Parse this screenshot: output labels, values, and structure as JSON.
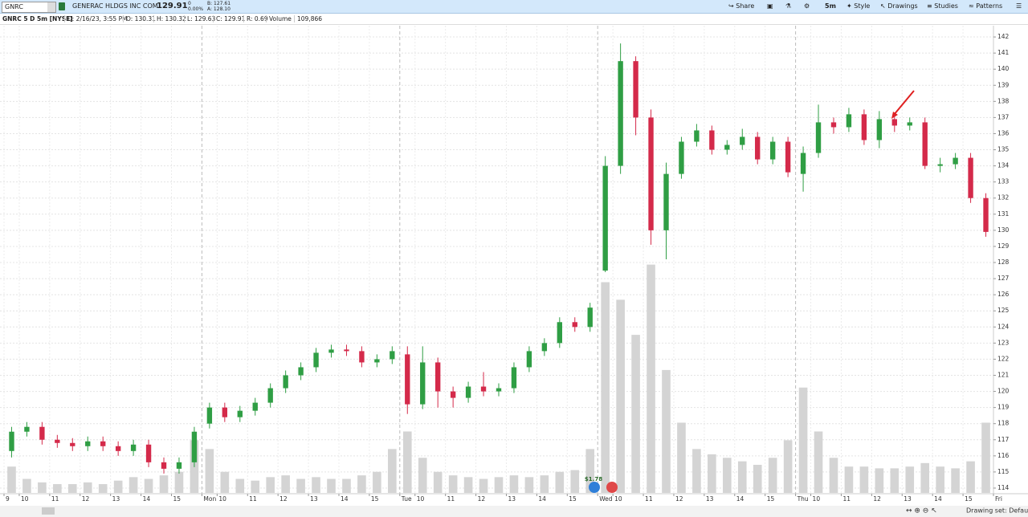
{
  "toolbar": {
    "symbol": "GNRC",
    "company": "GENERAC HLDGS INC COM",
    "last": "129.91",
    "change": "0",
    "change_pct": "0.00%",
    "bid": "B: 127.61",
    "ask": "A: 128.10",
    "share": "Share",
    "interval": "5m",
    "style": "Style",
    "drawings": "Drawings",
    "studies": "Studies",
    "patterns": "Patterns"
  },
  "info": {
    "symbol_desc": "GNRC 5 D 5m [NYSE]",
    "date": "D: 2/16/23, 3:55 PM",
    "open": "O: 130.31",
    "high": "H: 130.32",
    "low": "L: 129.63",
    "close": "C: 129.91",
    "range": "R: 0.69",
    "volume_label": "Volume",
    "volume": "109,866"
  },
  "status": {
    "drawing_set": "Drawing set: Default"
  },
  "chart_data": {
    "type": "candlestick",
    "up_color": "#2f9e44",
    "down_color": "#d42a4a",
    "volume_color": "#d4d4d4",
    "earnings_label": "$1.78",
    "x": [
      0.25,
      0.75,
      1.25,
      1.75,
      2.25,
      2.75,
      3.25,
      3.75,
      4.25,
      4.75,
      5.25,
      5.75,
      6.25,
      6.75,
      7.25,
      7.75,
      8.25,
      8.75,
      9.25,
      9.75,
      10.25,
      10.75,
      11.25,
      11.75,
      12.25,
      12.75,
      13.25,
      13.75,
      14.25,
      14.75,
      15.25,
      15.75,
      16.25,
      16.75,
      17.25,
      17.75,
      18.25,
      18.75,
      19.25,
      19.75,
      20.25,
      20.75,
      21.25,
      21.75,
      22.25,
      22.75,
      23.25,
      23.75,
      24.25,
      24.75,
      25.25,
      25.75,
      26.25,
      26.75,
      27.25,
      27.75,
      28.25,
      28.75,
      29.25,
      29.75,
      30.25,
      30.75,
      31.25,
      31.75,
      32.25
    ],
    "open": [
      116.3,
      117.5,
      117.8,
      117.0,
      116.8,
      116.6,
      116.9,
      116.6,
      116.3,
      116.7,
      115.6,
      115.2,
      115.6,
      118.0,
      119.0,
      118.4,
      118.8,
      119.3,
      120.2,
      121.0,
      121.5,
      122.4,
      122.6,
      122.5,
      121.8,
      122.0,
      122.3,
      119.2,
      121.8,
      120.0,
      119.6,
      120.3,
      120.0,
      120.2,
      121.5,
      122.5,
      123.0,
      124.3,
      124.0,
      127.5,
      134.0,
      140.5,
      137.0,
      130.0,
      133.5,
      135.5,
      136.2,
      135.0,
      135.3,
      135.8,
      134.4,
      135.5,
      133.5,
      134.8,
      136.7,
      136.4,
      137.2,
      135.6,
      136.9,
      136.5,
      136.7,
      134.0,
      134.1,
      134.5,
      132.0
    ],
    "high": [
      117.8,
      118.1,
      118.1,
      117.3,
      117.1,
      117.2,
      117.2,
      116.9,
      117.0,
      117.0,
      115.9,
      115.9,
      117.8,
      119.3,
      119.3,
      119.1,
      119.6,
      120.5,
      121.3,
      121.8,
      122.7,
      122.9,
      122.9,
      122.8,
      122.3,
      122.8,
      122.8,
      122.8,
      122.1,
      120.3,
      120.6,
      121.2,
      120.5,
      121.8,
      122.8,
      123.3,
      124.6,
      124.6,
      125.5,
      134.6,
      141.6,
      140.8,
      137.5,
      134.2,
      135.8,
      136.6,
      136.5,
      135.6,
      136.3,
      136.1,
      135.8,
      135.8,
      135.2,
      137.8,
      137.0,
      137.6,
      137.5,
      137.4,
      137.2,
      137.0,
      137.0,
      134.5,
      134.8,
      134.8,
      132.3
    ],
    "low": [
      115.9,
      117.2,
      116.7,
      116.5,
      116.3,
      116.3,
      116.3,
      116.0,
      116.0,
      115.3,
      114.9,
      114.9,
      115.3,
      117.7,
      118.1,
      118.1,
      118.5,
      119.0,
      119.9,
      120.7,
      121.2,
      122.1,
      122.2,
      121.5,
      121.5,
      121.7,
      118.6,
      118.9,
      119.0,
      119.0,
      119.3,
      119.7,
      119.7,
      119.9,
      121.2,
      122.2,
      122.7,
      123.7,
      123.7,
      127.4,
      133.5,
      135.9,
      129.1,
      128.2,
      133.2,
      135.2,
      134.7,
      134.7,
      135.0,
      134.1,
      134.1,
      133.3,
      132.4,
      134.5,
      136.0,
      136.1,
      135.3,
      135.1,
      136.1,
      136.2,
      133.8,
      133.6,
      133.8,
      131.7,
      129.6
    ],
    "close": [
      117.5,
      117.8,
      117.0,
      116.8,
      116.6,
      116.9,
      116.6,
      116.3,
      116.7,
      115.6,
      115.2,
      115.6,
      117.5,
      119.0,
      118.4,
      118.8,
      119.3,
      120.2,
      121.0,
      121.5,
      122.4,
      122.6,
      122.5,
      121.8,
      122.0,
      122.5,
      119.2,
      121.8,
      120.0,
      119.6,
      120.3,
      120.0,
      120.2,
      121.5,
      122.5,
      123.0,
      124.3,
      124.0,
      125.2,
      134.0,
      140.5,
      137.0,
      130.0,
      133.5,
      135.5,
      136.2,
      135.0,
      135.3,
      135.8,
      134.4,
      135.5,
      133.6,
      134.8,
      136.7,
      136.4,
      137.2,
      135.6,
      136.9,
      136.5,
      136.7,
      134.0,
      134.1,
      134.5,
      132.0,
      129.9
    ],
    "volume": [
      15000,
      8000,
      6000,
      5000,
      5000,
      6000,
      5000,
      7000,
      9000,
      8000,
      10000,
      12000,
      30000,
      25000,
      12000,
      8000,
      7000,
      9000,
      10000,
      8000,
      9000,
      8000,
      8000,
      10000,
      12000,
      25000,
      35000,
      20000,
      12000,
      10000,
      9000,
      8000,
      9000,
      10000,
      9000,
      10000,
      12000,
      13000,
      25000,
      120000,
      110000,
      90000,
      130000,
      70000,
      40000,
      25000,
      22000,
      20000,
      18000,
      16000,
      20000,
      30000,
      60000,
      35000,
      20000,
      15000,
      15000,
      14000,
      14000,
      15000,
      17000,
      15000,
      14000,
      18000,
      40000
    ],
    "vlim": [
      0,
      160000
    ],
    "xlim": [
      0,
      32.5
    ],
    "xticks": [
      {
        "value": 0,
        "label": "9"
      },
      {
        "value": 0.5,
        "label": "10"
      },
      {
        "value": 1.5,
        "label": "11"
      },
      {
        "value": 2.5,
        "label": "12"
      },
      {
        "value": 3.5,
        "label": "13"
      },
      {
        "value": 4.5,
        "label": "14"
      },
      {
        "value": 5.5,
        "label": "15"
      },
      {
        "value": 6.5,
        "label": "Mon"
      },
      {
        "value": 7,
        "label": "10"
      },
      {
        "value": 8,
        "label": "11"
      },
      {
        "value": 9,
        "label": "12"
      },
      {
        "value": 10,
        "label": "13"
      },
      {
        "value": 11,
        "label": "14"
      },
      {
        "value": 12,
        "label": "15"
      },
      {
        "value": 13,
        "label": "Tue"
      },
      {
        "value": 13.5,
        "label": "10"
      },
      {
        "value": 14.5,
        "label": "11"
      },
      {
        "value": 15.5,
        "label": "12"
      },
      {
        "value": 16.5,
        "label": "13"
      },
      {
        "value": 17.5,
        "label": "14"
      },
      {
        "value": 18.5,
        "label": "15"
      },
      {
        "value": 19.5,
        "label": "Wed"
      },
      {
        "value": 20,
        "label": "10"
      },
      {
        "value": 21,
        "label": "11"
      },
      {
        "value": 22,
        "label": "12"
      },
      {
        "value": 23,
        "label": "13"
      },
      {
        "value": 24,
        "label": "14"
      },
      {
        "value": 25,
        "label": "15"
      },
      {
        "value": 26,
        "label": "Thu"
      },
      {
        "value": 26.5,
        "label": "10"
      },
      {
        "value": 27.5,
        "label": "11"
      },
      {
        "value": 28.5,
        "label": "12"
      },
      {
        "value": 29.5,
        "label": "13"
      },
      {
        "value": 30.5,
        "label": "14"
      },
      {
        "value": 31.5,
        "label": "15"
      },
      {
        "value": 32.5,
        "label": "Fri"
      }
    ],
    "ylim": [
      113.65,
      142.7
    ],
    "yticks": [
      114,
      115,
      116,
      117,
      118,
      119,
      120,
      121,
      122,
      123,
      124,
      125,
      126,
      127,
      128,
      129,
      130,
      131,
      132,
      133,
      134,
      135,
      136,
      137,
      138,
      139,
      140,
      141,
      142
    ],
    "grid": true
  }
}
